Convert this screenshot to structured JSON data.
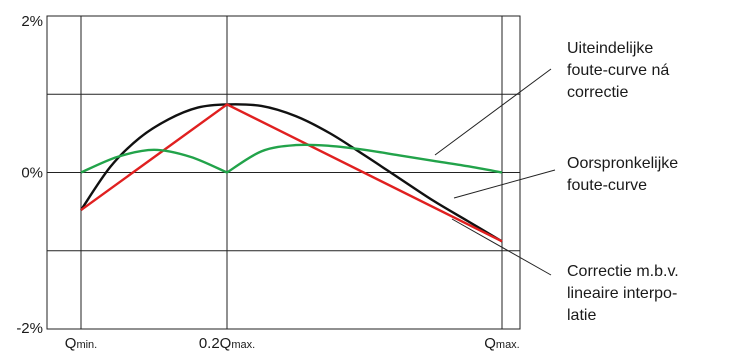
{
  "chart_data": {
    "type": "line",
    "title": "",
    "xlabel": "",
    "ylabel": "",
    "ylim": [
      -2,
      2
    ],
    "y_unit": "%",
    "y_ticks": [
      {
        "value": 2,
        "label": "2%"
      },
      {
        "value": 0,
        "label": "0%"
      },
      {
        "value": -2,
        "label": "-2%"
      }
    ],
    "x_ticks": [
      {
        "key": "qmin",
        "main": "Q",
        "sub": "min."
      },
      {
        "key": "q02",
        "main": "0.2Q",
        "sub": "max."
      },
      {
        "key": "qmax",
        "main": "Q",
        "sub": "max."
      }
    ],
    "grid": true,
    "series": [
      {
        "key": "final",
        "color": "#22a34a",
        "x": [
          0,
          0.05,
          0.1,
          0.15,
          0.2,
          0.3,
          0.4,
          0.5,
          0.6,
          0.7,
          0.8,
          0.9,
          1.0
        ],
        "y": [
          0.0,
          0.2,
          0.29,
          0.2,
          0.0,
          0.27,
          0.35,
          0.34,
          0.29,
          0.22,
          0.15,
          0.08,
          0.0
        ]
      },
      {
        "key": "original",
        "color": "#111111",
        "x": [
          0,
          0.04,
          0.08,
          0.12,
          0.16,
          0.2,
          0.3,
          0.4,
          0.5,
          0.6,
          0.7,
          0.8,
          0.9,
          1.0
        ],
        "y": [
          -0.48,
          0.07,
          0.44,
          0.68,
          0.83,
          0.87,
          0.85,
          0.72,
          0.5,
          0.22,
          -0.07,
          -0.36,
          -0.62,
          -0.88
        ]
      },
      {
        "key": "correction",
        "color": "#e02020",
        "x": [
          0,
          0.2,
          1.0
        ],
        "y": [
          -0.48,
          0.87,
          -0.88
        ]
      }
    ],
    "annotations": [
      {
        "key": "final",
        "lines": [
          "Uiteindelijke",
          "foute-curve ná",
          "correctie"
        ]
      },
      {
        "key": "original",
        "lines": [
          "Oorspronkelijke",
          "foute-curve"
        ]
      },
      {
        "key": "correction",
        "lines": [
          "Correctie m.b.v.",
          "lineaire interpo-",
          "latie"
        ]
      }
    ]
  }
}
